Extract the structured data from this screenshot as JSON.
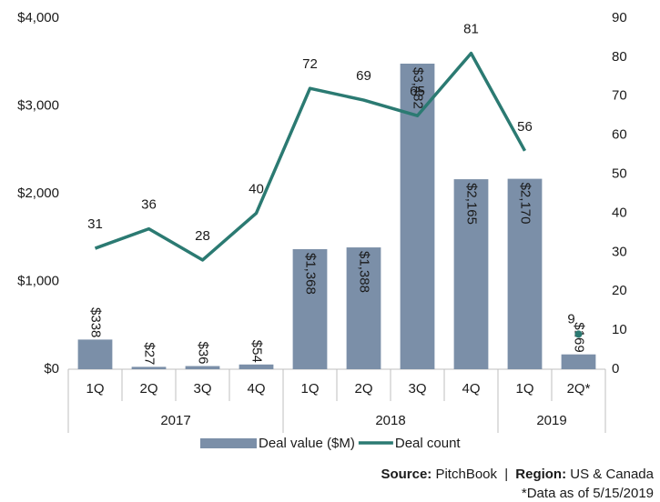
{
  "chart_data": {
    "type": "bar_line",
    "categories": [
      "1Q",
      "2Q",
      "3Q",
      "4Q",
      "1Q",
      "2Q",
      "3Q",
      "4Q",
      "1Q",
      "2Q*"
    ],
    "groups": [
      {
        "label": "2017",
        "count": 4
      },
      {
        "label": "2018",
        "count": 4
      },
      {
        "label": "2019",
        "count": 2
      }
    ],
    "series": [
      {
        "name": "Deal value ($M)",
        "type": "bar",
        "color": "#7b8fa8",
        "values": [
          338,
          27,
          36,
          54,
          1368,
          1388,
          3482,
          2165,
          2170,
          169
        ],
        "value_labels": [
          "$338",
          "$27",
          "$36",
          "$54",
          "$1,368",
          "$1,388",
          "$3,482",
          "$2,165",
          "$2,170",
          "$169"
        ]
      },
      {
        "name": "Deal count",
        "type": "line",
        "axis": "y2",
        "color": "#2b7a72",
        "values": [
          31,
          36,
          28,
          40,
          72,
          69,
          65,
          81,
          56,
          9
        ],
        "marker_only_indices": [
          9
        ]
      }
    ],
    "ylim": [
      0,
      4000
    ],
    "yticks": [
      {
        "value": 0,
        "label": "$0"
      },
      {
        "value": 1000,
        "label": "$1,000"
      },
      {
        "value": 2000,
        "label": "$2,000"
      },
      {
        "value": 3000,
        "label": "$3,000"
      },
      {
        "value": 4000,
        "label": "$4,000"
      }
    ],
    "y2lim": [
      0,
      90
    ],
    "y2ticks": [
      0,
      10,
      20,
      30,
      40,
      50,
      60,
      70,
      80,
      90
    ],
    "legend": "bottom",
    "source_label": "Source:",
    "source": "PitchBook",
    "separator": "|",
    "region_label": "Region:",
    "region": "US & Canada",
    "note": "*Data as of 5/15/2019"
  }
}
